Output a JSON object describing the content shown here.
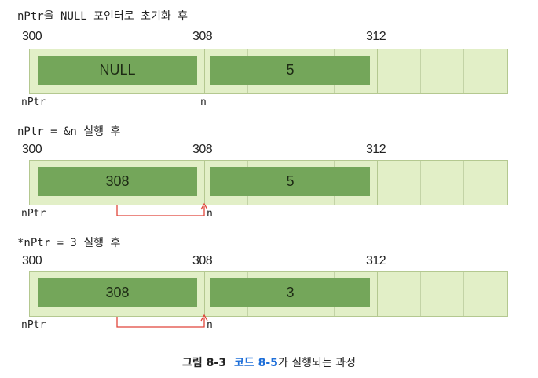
{
  "stages": [
    {
      "title": "nPtr을 NULL 포인터로 초기화 후",
      "addresses": [
        "300",
        "308",
        "312"
      ],
      "ptr_value": "NULL",
      "n_value": "5",
      "ptr_label": "nPtr",
      "n_label": "n",
      "has_arrow": false
    },
    {
      "title": "nPtr = &n 실행 후",
      "addresses": [
        "300",
        "308",
        "312"
      ],
      "ptr_value": "308",
      "n_value": "5",
      "ptr_label": "nPtr",
      "n_label": "n",
      "has_arrow": true
    },
    {
      "title": "*nPtr = 3 실행 후",
      "addresses": [
        "300",
        "308",
        "312"
      ],
      "ptr_value": "308",
      "n_value": "3",
      "ptr_label": "nPtr",
      "n_label": "n",
      "has_arrow": true
    }
  ],
  "caption": {
    "figure": "그림 8-3",
    "code_ref": "코드 8-5",
    "text": "가 실행되는 과정"
  },
  "colors": {
    "memory_bg": "#e2efc7",
    "variable_box": "#74a65a",
    "arrow": "#e0453a",
    "code_ref": "#1e6fd9"
  }
}
